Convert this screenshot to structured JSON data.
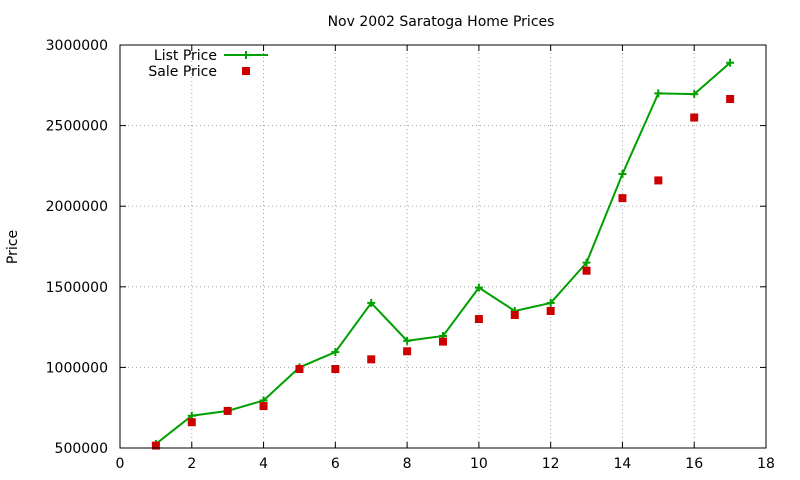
{
  "chart_data": {
    "type": "line",
    "title": "Nov 2002 Saratoga Home Prices",
    "xlabel": "",
    "ylabel": "Price",
    "xlim": [
      0,
      18
    ],
    "ylim": [
      500000,
      3000000
    ],
    "xticks": [
      0,
      2,
      4,
      6,
      8,
      10,
      12,
      14,
      16,
      18
    ],
    "yticks": [
      500000,
      1000000,
      1500000,
      2000000,
      2500000,
      3000000
    ],
    "grid": true,
    "legend_position": "top-left",
    "series": [
      {
        "name": "List Price",
        "style": "lines+crosses",
        "color": "#00a000",
        "x": [
          1,
          2,
          3,
          4,
          5,
          6,
          7,
          8,
          9,
          10,
          11,
          12,
          13,
          14,
          15,
          16,
          17
        ],
        "values": [
          525000,
          700000,
          730000,
          795000,
          1000000,
          1095000,
          1400000,
          1165000,
          1195000,
          1495000,
          1350000,
          1400000,
          1650000,
          2200000,
          2700000,
          2695000,
          2890000
        ]
      },
      {
        "name": "Sale Price",
        "style": "squares",
        "color": "#cc0000",
        "x": [
          1,
          2,
          3,
          4,
          5,
          6,
          7,
          8,
          9,
          10,
          11,
          12,
          13,
          14,
          15,
          16,
          17
        ],
        "values": [
          515000,
          660000,
          730000,
          760000,
          990000,
          990000,
          1050000,
          1100000,
          1160000,
          1300000,
          1325000,
          1350000,
          1600000,
          2050000,
          2160000,
          2550000,
          2665000
        ]
      }
    ]
  }
}
